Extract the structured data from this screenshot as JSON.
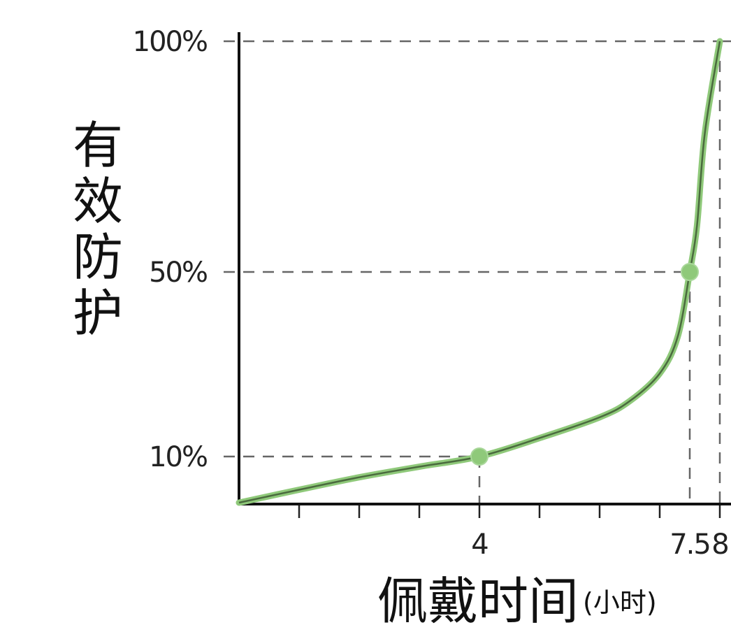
{
  "chart_data": {
    "type": "line",
    "ylabel": "有效防护",
    "xlabel": "佩戴时间",
    "xunit": "(小时)",
    "x_ticks": [
      "4",
      "7.5",
      "8"
    ],
    "y_ticks": [
      "10%",
      "50%",
      "100%"
    ],
    "xlim": [
      0,
      8
    ],
    "ylim": [
      0,
      100
    ],
    "grid": false,
    "reference_lines": [
      {
        "x": 4,
        "y": 10
      },
      {
        "x": 7.5,
        "y": 50
      },
      {
        "x": 8,
        "y": 100
      }
    ],
    "series": [
      {
        "color": "#8fc97a",
        "points": [
          {
            "x": 0,
            "y": 0
          },
          {
            "x": 1,
            "y": 2.8
          },
          {
            "x": 2,
            "y": 5.5
          },
          {
            "x": 3,
            "y": 7.8
          },
          {
            "x": 4,
            "y": 10
          },
          {
            "x": 5,
            "y": 14
          },
          {
            "x": 6,
            "y": 18.5
          },
          {
            "x": 6.5,
            "y": 22
          },
          {
            "x": 7,
            "y": 28
          },
          {
            "x": 7.3,
            "y": 36
          },
          {
            "x": 7.5,
            "y": 50
          },
          {
            "x": 7.62,
            "y": 60
          },
          {
            "x": 7.75,
            "y": 80
          },
          {
            "x": 8,
            "y": 100
          }
        ],
        "markers": [
          {
            "x": 4,
            "y": 10
          },
          {
            "x": 7.5,
            "y": 50
          }
        ]
      }
    ]
  }
}
